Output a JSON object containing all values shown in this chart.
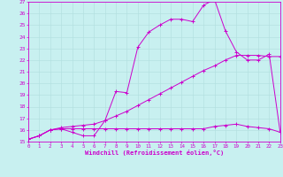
{
  "xlabel": "Windchill (Refroidissement éolien,°C)",
  "bg_color": "#c8f0f0",
  "grid_color": "#b0dede",
  "line_color": "#cc00cc",
  "x_ticks": [
    0,
    1,
    2,
    3,
    4,
    5,
    6,
    7,
    8,
    9,
    10,
    11,
    12,
    13,
    14,
    15,
    16,
    17,
    18,
    19,
    20,
    21,
    22,
    23
  ],
  "y_ticks": [
    15,
    16,
    17,
    18,
    19,
    20,
    21,
    22,
    23,
    24,
    25,
    26,
    27
  ],
  "xlim": [
    0,
    23
  ],
  "ylim": [
    15,
    27
  ],
  "line_flat_x": [
    0,
    1,
    2,
    3,
    4,
    5,
    6,
    7,
    8,
    9,
    10,
    11,
    12,
    13,
    14,
    15,
    16,
    17,
    18,
    19,
    20,
    21,
    22,
    23
  ],
  "line_flat_y": [
    15.2,
    15.5,
    16.0,
    16.1,
    16.1,
    16.1,
    16.1,
    16.1,
    16.1,
    16.1,
    16.1,
    16.1,
    16.1,
    16.1,
    16.1,
    16.1,
    16.1,
    16.3,
    16.4,
    16.5,
    16.3,
    16.2,
    16.1,
    15.8
  ],
  "line_peak_x": [
    0,
    1,
    2,
    3,
    4,
    5,
    6,
    7,
    8,
    9,
    10,
    11,
    12,
    13,
    14,
    15,
    16,
    17,
    18,
    19,
    20,
    21,
    22,
    23
  ],
  "line_peak_y": [
    15.2,
    15.5,
    16.0,
    16.1,
    15.8,
    15.5,
    15.5,
    16.8,
    19.3,
    19.2,
    23.1,
    24.4,
    25.0,
    25.5,
    25.5,
    25.3,
    26.7,
    27.2,
    24.5,
    22.7,
    22.0,
    22.0,
    22.5,
    15.8
  ],
  "line_diag_x": [
    0,
    1,
    2,
    3,
    4,
    5,
    6,
    7,
    8,
    9,
    10,
    11,
    12,
    13,
    14,
    15,
    16,
    17,
    18,
    19,
    20,
    21,
    22,
    23
  ],
  "line_diag_y": [
    15.2,
    15.5,
    16.0,
    16.2,
    16.3,
    16.4,
    16.5,
    16.8,
    17.2,
    17.6,
    18.1,
    18.6,
    19.1,
    19.6,
    20.1,
    20.6,
    21.1,
    21.5,
    22.0,
    22.4,
    22.4,
    22.4,
    22.3,
    22.3
  ]
}
